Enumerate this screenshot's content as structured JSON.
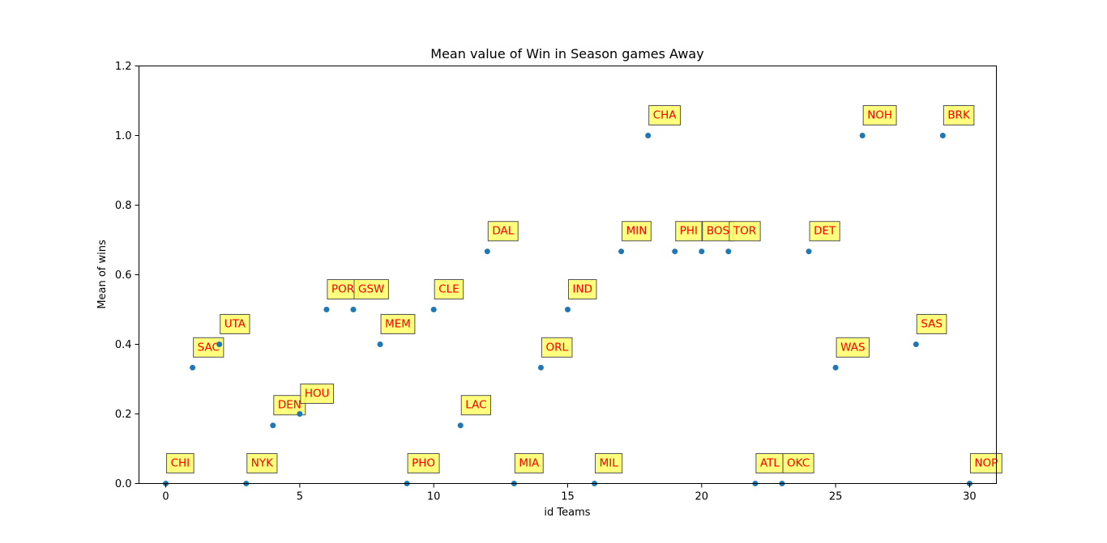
{
  "chart_data": {
    "type": "scatter",
    "title": "Mean value of Win in Season games Away",
    "xlabel": "id Teams",
    "ylabel": "Mean of wins",
    "xlim": [
      -1,
      31
    ],
    "ylim": [
      0,
      1.2
    ],
    "xticks": [
      0,
      5,
      10,
      15,
      20,
      25,
      30
    ],
    "yticks": [
      0.0,
      0.2,
      0.4,
      0.6,
      0.8,
      1.0,
      1.2
    ],
    "xtick_labels": [
      "0",
      "5",
      "10",
      "15",
      "20",
      "25",
      "30"
    ],
    "ytick_labels": [
      "0.0",
      "0.2",
      "0.4",
      "0.6",
      "0.8",
      "1.0",
      "1.2"
    ],
    "grid": false,
    "marker_color": "#1f77b4",
    "annotation_text_color": "#ff0000",
    "annotation_box_color": "#ffff66",
    "points": [
      {
        "x": 0,
        "y": 0.0,
        "label": "CHI"
      },
      {
        "x": 1,
        "y": 0.333,
        "label": "SAC"
      },
      {
        "x": 2,
        "y": 0.4,
        "label": "UTA"
      },
      {
        "x": 3,
        "y": 0.0,
        "label": "NYK"
      },
      {
        "x": 4,
        "y": 0.167,
        "label": "DEN"
      },
      {
        "x": 5,
        "y": 0.2,
        "label": "HOU"
      },
      {
        "x": 6,
        "y": 0.5,
        "label": "POR"
      },
      {
        "x": 7,
        "y": 0.5,
        "label": "GSW"
      },
      {
        "x": 8,
        "y": 0.4,
        "label": "MEM"
      },
      {
        "x": 9,
        "y": 0.0,
        "label": "PHO"
      },
      {
        "x": 10,
        "y": 0.5,
        "label": "CLE"
      },
      {
        "x": 11,
        "y": 0.167,
        "label": "LAC"
      },
      {
        "x": 12,
        "y": 0.667,
        "label": "DAL"
      },
      {
        "x": 13,
        "y": 0.0,
        "label": "MIA"
      },
      {
        "x": 14,
        "y": 0.333,
        "label": "ORL"
      },
      {
        "x": 15,
        "y": 0.5,
        "label": "IND"
      },
      {
        "x": 16,
        "y": 0.0,
        "label": "MIL"
      },
      {
        "x": 17,
        "y": 0.667,
        "label": "MIN"
      },
      {
        "x": 18,
        "y": 1.0,
        "label": "CHA"
      },
      {
        "x": 19,
        "y": 0.667,
        "label": "PHI"
      },
      {
        "x": 20,
        "y": 0.667,
        "label": "BOS"
      },
      {
        "x": 21,
        "y": 0.667,
        "label": "TOR"
      },
      {
        "x": 22,
        "y": 0.0,
        "label": "ATL"
      },
      {
        "x": 23,
        "y": 0.0,
        "label": "OKC"
      },
      {
        "x": 24,
        "y": 0.667,
        "label": "DET"
      },
      {
        "x": 25,
        "y": 0.333,
        "label": "WAS"
      },
      {
        "x": 26,
        "y": 1.0,
        "label": "NOH"
      },
      {
        "x": 28,
        "y": 0.4,
        "label": "SAS"
      },
      {
        "x": 29,
        "y": 1.0,
        "label": "BRK"
      },
      {
        "x": 30,
        "y": 0.0,
        "label": "NOP"
      }
    ]
  }
}
